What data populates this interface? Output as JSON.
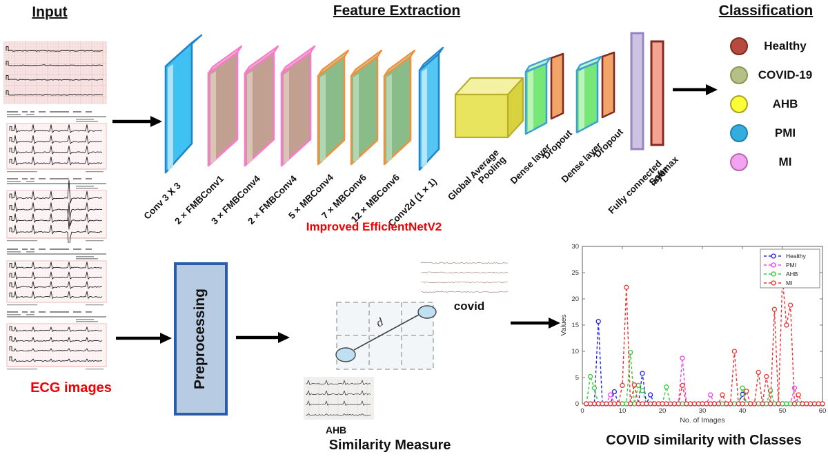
{
  "headers": {
    "input": "Input",
    "feature_extraction": "Feature Extraction",
    "classification": "Classification"
  },
  "input_section": {
    "caption": "ECG images",
    "caption_color": "#f00000",
    "num_images": 5
  },
  "architecture": {
    "caption": "Improved EfficientNetV2",
    "caption_color": "#f00000",
    "layers": [
      {
        "label": "Conv 3 X 3",
        "fill": "#3fc1f2",
        "border": "#2285c8",
        "light": "#bfe9fb"
      },
      {
        "label": "2 × FMBConv1",
        "fill": "#c1a091",
        "border": "#fa7ad0",
        "light": "#dfc9bd"
      },
      {
        "label": "3 × FMBConv4",
        "fill": "#c1a091",
        "border": "#fa7ad0",
        "light": "#dfc9bd"
      },
      {
        "label": "2 × FMBConv4",
        "fill": "#c1a091",
        "border": "#fa7ad0",
        "light": "#dfc9bd"
      },
      {
        "label": "5 × MBConv4",
        "fill": "#8abc8a",
        "border": "#f19140",
        "light": "#b8d9b8"
      },
      {
        "label": "7 × MBConv6",
        "fill": "#8abc8a",
        "border": "#f19140",
        "light": "#b8d9b8"
      },
      {
        "label": "12 × MBConv6",
        "fill": "#8abc8a",
        "border": "#f19140",
        "light": "#b8d9b8"
      },
      {
        "label": "Conv2d (1 × 1)",
        "fill": "#55c5f3",
        "border": "#2285c8",
        "light": "#c4ecfb"
      },
      {
        "label": "Global Average Pooling",
        "fill": "#e9e45e",
        "border": "#b8ae2e",
        "light": "#f4f1a2"
      },
      {
        "label": "Dense layer",
        "fill": "#77e877",
        "border": "#3aa0d8",
        "light": "#c6f6c6"
      },
      {
        "label": "Dropout",
        "fill": "#f2a569",
        "border": "#822a22",
        "light": "#f8c79d"
      },
      {
        "label": "Dense layer",
        "fill": "#77e877",
        "border": "#3aa0d8",
        "light": "#c6f6c6"
      },
      {
        "label": "Dropout",
        "fill": "#f2a569",
        "border": "#822a22",
        "light": "#f8c79d"
      },
      {
        "label": "Fully connected layer",
        "fill": "#cdc2e2",
        "border": "#9784c2",
        "light": "#e2daf0"
      },
      {
        "label": "Softmax",
        "fill": "#f4a393",
        "border": "#822a22",
        "light": "#f9c5ba"
      }
    ]
  },
  "classification": {
    "classes": [
      {
        "label": "Healthy",
        "color": "#b54a3e",
        "border": "#7c2d1f"
      },
      {
        "label": "COVID-19",
        "color": "#b4c085",
        "border": "#8a9454"
      },
      {
        "label": "AHB",
        "color": "#fcfc38",
        "border": "#a8a41e"
      },
      {
        "label": "PMI",
        "color": "#33adde",
        "border": "#1f7fb0"
      },
      {
        "label": "MI",
        "color": "#f1a3ef",
        "border": "#b765b5"
      }
    ]
  },
  "pipeline": {
    "preprocessing_label": "Preprocessing",
    "similarity": {
      "caption": "Similarity Measure",
      "distance_label": "d",
      "top_point_label": "covid",
      "bottom_point_label": "AHB"
    }
  },
  "chart_caption": "COVID similarity with Classes",
  "chart_data": {
    "type": "line",
    "title": "",
    "xlabel": "No. of Images",
    "ylabel": "Values",
    "xlim": [
      0,
      60
    ],
    "ylim": [
      0,
      30
    ],
    "xticks": [
      0,
      10,
      20,
      30,
      40,
      50,
      60
    ],
    "yticks": [
      0,
      5,
      10,
      15,
      20,
      25,
      30
    ],
    "n_points": 60,
    "baseline_value": 0,
    "line_style": "dashed",
    "marker": "open-circle",
    "legend_position": "top-right",
    "grid": false,
    "series": [
      {
        "name": "Healthy",
        "color": "#2222ee",
        "peaks": {
          "4": 15.7,
          "8": 2.3,
          "15": 5.8,
          "17": 1.7,
          "40": 1.8
        }
      },
      {
        "name": "PMI",
        "color": "#ee44ee",
        "peaks": {
          "7": 1.7,
          "25": 8.7,
          "32": 1.7,
          "53": 3.0
        }
      },
      {
        "name": "AHB",
        "color": "#33cc33",
        "peaks": {
          "2": 5.2,
          "3": 3.0,
          "12": 9.8,
          "14": 3.5,
          "15": 2.5,
          "21": 3.2,
          "40": 3.0,
          "47": 2.5
        }
      },
      {
        "name": "MI",
        "color": "#ee3333",
        "peaks": {
          "10": 3.5,
          "11": 22.2,
          "13": 3.6,
          "25": 3.5,
          "35": 1.7,
          "38": 10.0,
          "41": 2.4,
          "44": 6.0,
          "46": 5.2,
          "48": 18.0,
          "50": 24.0,
          "51": 15.0,
          "52": 18.8,
          "54": 1.7
        }
      }
    ]
  }
}
